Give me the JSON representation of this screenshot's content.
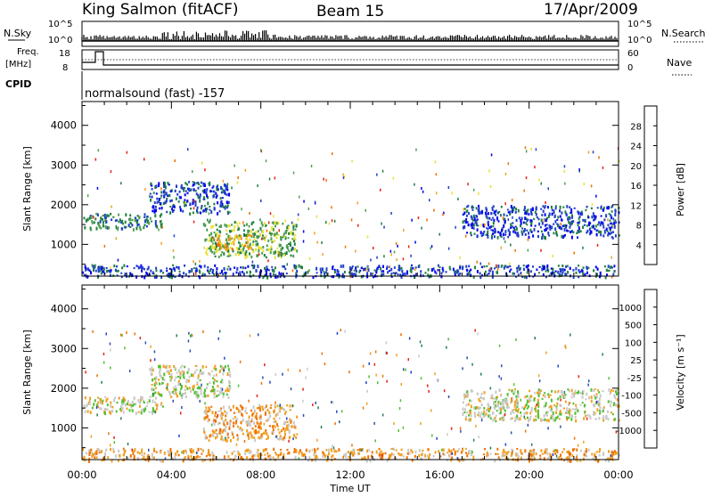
{
  "header": {
    "station": "King Salmon (fitACF)",
    "beam": "Beam 15",
    "date": "17/Apr/2009"
  },
  "top_panels": {
    "nsky_label": "N.Sky",
    "nsky_ticks": [
      "10^5",
      "10^0"
    ],
    "nsearch_label": "N.Search",
    "nsearch_ticks": [
      "10^5",
      "10^0"
    ],
    "freq_label_line1": "Freq.",
    "freq_label_line2": "[MHz]",
    "freq_ticks": [
      "18",
      "8"
    ],
    "nave_label": "Nave",
    "nave_ticks": [
      "60",
      "0"
    ],
    "cpid_label": "CPID",
    "cpid_value": "normalsound (fast) -157"
  },
  "chart_data": [
    {
      "type": "heatmap",
      "name": "power",
      "ylabel": "Slant Range [km]",
      "yticks": [
        "4000",
        "3000",
        "2000",
        "1000"
      ],
      "ylim": [
        200,
        4600
      ],
      "xlim_hours": [
        0,
        24
      ],
      "colorbar": {
        "label": "Power [dB]",
        "ticks": [
          "28",
          "24",
          "20",
          "16",
          "12",
          "8",
          "4"
        ],
        "colors": [
          "#0000ee",
          "#2040c8",
          "#208040",
          "#50a050",
          "#e8e030",
          "#f0a020",
          "#f07000",
          "#e82010"
        ]
      },
      "echo_regions": [
        {
          "t0": 0.0,
          "t1": 3.6,
          "r0": 1400,
          "r1": 1800,
          "level": 2
        },
        {
          "t0": 3.0,
          "t1": 6.6,
          "r0": 1800,
          "r1": 2600,
          "level": 1
        },
        {
          "t0": 5.4,
          "t1": 9.6,
          "r0": 700,
          "r1": 1600,
          "level": 3
        },
        {
          "t0": 6.0,
          "t1": 7.6,
          "r0": 900,
          "r1": 1300,
          "level": 5
        },
        {
          "t0": 17.0,
          "t1": 24.0,
          "r0": 1200,
          "r1": 2000,
          "level": 1
        },
        {
          "t0": 0.0,
          "t1": 24.0,
          "r0": 200,
          "r1": 500,
          "level": 1
        }
      ]
    },
    {
      "type": "heatmap",
      "name": "velocity",
      "ylabel": "Slant Range [km]",
      "yticks": [
        "4000",
        "3000",
        "2000",
        "1000"
      ],
      "ylim": [
        200,
        4600
      ],
      "xlim_hours": [
        0,
        24
      ],
      "colorbar": {
        "label": "Velocity [m s⁻¹]",
        "ticks": [
          "1000",
          "500",
          "100",
          "25",
          "-25",
          "-100",
          "-500",
          "-1000"
        ],
        "colors": [
          "#2040d0",
          "#3050a8",
          "#208050",
          "#50c030",
          "#c8c8c8",
          "#f0a020",
          "#f07000",
          "#e82010"
        ]
      },
      "echo_regions": [
        {
          "t0": 0.0,
          "t1": 3.6,
          "r0": 1400,
          "r1": 1800,
          "level": 4
        },
        {
          "t0": 3.0,
          "t1": 6.6,
          "r0": 1800,
          "r1": 2600,
          "level": 4
        },
        {
          "t0": 5.4,
          "t1": 9.6,
          "r0": 700,
          "r1": 1600,
          "level": 5
        },
        {
          "t0": 17.0,
          "t1": 24.0,
          "r0": 1200,
          "r1": 2000,
          "level": 4
        },
        {
          "t0": 0.0,
          "t1": 24.0,
          "r0": 200,
          "r1": 500,
          "level": 5
        }
      ]
    }
  ],
  "xaxis": {
    "ticks": [
      "00:00",
      "04:00",
      "08:00",
      "12:00",
      "16:00",
      "20:00",
      "00:00"
    ],
    "label": "Time UT"
  }
}
